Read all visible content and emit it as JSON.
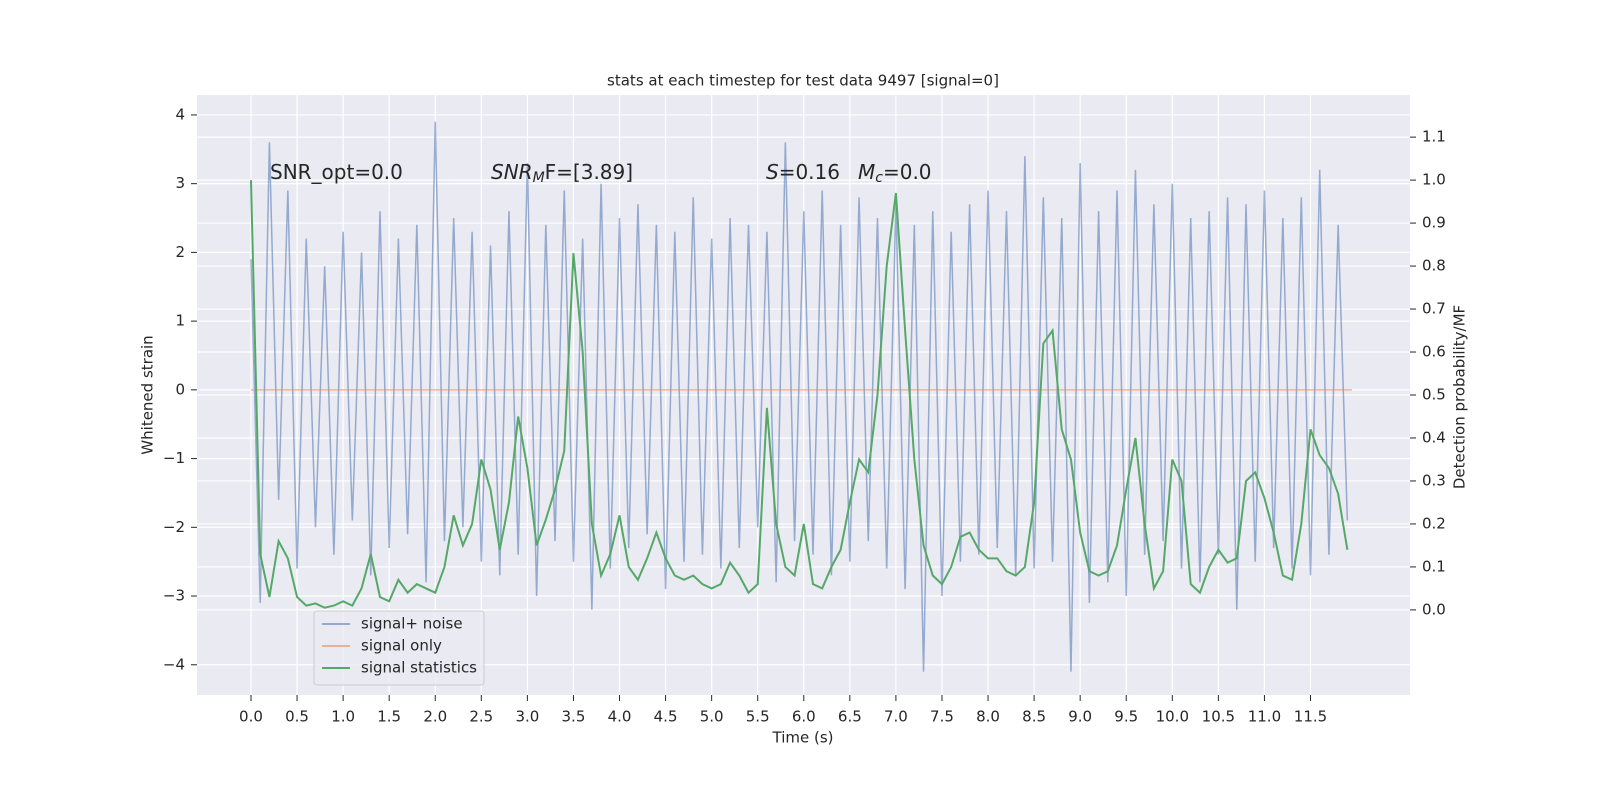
{
  "chart_data": {
    "type": "line",
    "title": "stats at each timestep for test data 9497 [signal=0]",
    "xlabel": "Time (s)",
    "ylabel": "Whitened strain",
    "y2label": "Detection probability/MF",
    "annotations": [
      [
        "SNR_opt=0.0"
      ],
      [
        "SNR",
        "M",
        "F=[3.89]"
      ],
      [
        "S",
        "=0.16"
      ],
      [
        "M",
        "c",
        "=0.0"
      ]
    ],
    "x": [
      0,
      0.1,
      0.2,
      0.3,
      0.4,
      0.5,
      0.6,
      0.7,
      0.8,
      0.9,
      1,
      1.1,
      1.2,
      1.3,
      1.4,
      1.5,
      1.6,
      1.7,
      1.8,
      1.9,
      2,
      2.1,
      2.2,
      2.3,
      2.4,
      2.5,
      2.6,
      2.7,
      2.8,
      2.9,
      3,
      3.1,
      3.2,
      3.3,
      3.4,
      3.5,
      3.6,
      3.7,
      3.8,
      3.9,
      4,
      4.1,
      4.2,
      4.3,
      4.4,
      4.5,
      4.6,
      4.7,
      4.8,
      4.9,
      5,
      5.1,
      5.2,
      5.3,
      5.4,
      5.5,
      5.6,
      5.7,
      5.8,
      5.9,
      6,
      6.1,
      6.2,
      6.3,
      6.4,
      6.5,
      6.6,
      6.7,
      6.8,
      6.9,
      7,
      7.1,
      7.2,
      7.3,
      7.4,
      7.5,
      7.6,
      7.7,
      7.8,
      7.9,
      8,
      8.1,
      8.2,
      8.3,
      8.4,
      8.5,
      8.6,
      8.7,
      8.8,
      8.9,
      9,
      9.1,
      9.2,
      9.3,
      9.4,
      9.5,
      9.6,
      9.7,
      9.8,
      9.9,
      10,
      10.1,
      10.2,
      10.3,
      10.4,
      10.5,
      10.6,
      10.7,
      10.8,
      10.9,
      11,
      11.1,
      11.2,
      11.3,
      11.4,
      11.5,
      11.6,
      11.7,
      11.8,
      11.9
    ],
    "series": [
      {
        "name": "signal+ noise",
        "color": "#4c72b0",
        "axis": "y",
        "values": [
          1.9,
          -3.1,
          3.6,
          -1.6,
          2.9,
          -2.6,
          2.2,
          -2.0,
          1.8,
          -2.4,
          2.3,
          -1.9,
          2.0,
          -2.7,
          2.6,
          -2.3,
          2.2,
          -2.1,
          2.4,
          -2.8,
          3.9,
          -2.2,
          2.5,
          -2.0,
          2.3,
          -2.5,
          2.1,
          -2.7,
          2.6,
          -2.4,
          3.3,
          -3.0,
          2.4,
          -2.2,
          2.9,
          -2.5,
          2.2,
          -3.2,
          3.0,
          -2.6,
          2.5,
          -2.3,
          2.7,
          -2.1,
          2.4,
          -2.9,
          2.3,
          -2.5,
          2.8,
          -2.4,
          2.2,
          -2.6,
          2.5,
          -2.3,
          2.4,
          -2.0,
          2.3,
          -2.8,
          3.6,
          -2.2,
          2.6,
          -2.4,
          2.9,
          -2.7,
          2.4,
          -2.5,
          2.8,
          -2.2,
          2.5,
          -2.6,
          2.7,
          -2.9,
          2.4,
          -4.1,
          2.6,
          -3.0,
          2.3,
          -2.5,
          2.7,
          -2.4,
          2.9,
          -2.3,
          2.6,
          -2.7,
          3.4,
          -2.6,
          2.8,
          -2.5,
          2.5,
          -4.1,
          3.3,
          -3.1,
          2.6,
          -2.8,
          2.9,
          -3.0,
          3.2,
          -2.4,
          2.7,
          -2.2,
          3.0,
          -2.6,
          2.5,
          -2.8,
          2.6,
          -2.4,
          2.8,
          -3.2,
          2.7,
          -2.5,
          2.9,
          -2.3,
          2.5,
          -2.6,
          2.8,
          -2.7,
          3.2,
          -2.4,
          2.4,
          -1.9
        ]
      },
      {
        "name": "signal only",
        "color": "#dd8452",
        "axis": "y",
        "x": [
          0,
          11.95
        ],
        "values": [
          0,
          0
        ]
      },
      {
        "name": "signal statistics",
        "color": "#55a868",
        "axis": "y2",
        "values": [
          1.0,
          0.13,
          0.03,
          0.16,
          0.12,
          0.03,
          0.01,
          0.015,
          0.005,
          0.01,
          0.02,
          0.01,
          0.05,
          0.13,
          0.03,
          0.02,
          0.07,
          0.04,
          0.06,
          0.05,
          0.04,
          0.1,
          0.22,
          0.15,
          0.2,
          0.35,
          0.28,
          0.14,
          0.25,
          0.45,
          0.33,
          0.15,
          0.21,
          0.28,
          0.37,
          0.83,
          0.6,
          0.2,
          0.08,
          0.13,
          0.22,
          0.1,
          0.07,
          0.12,
          0.18,
          0.12,
          0.08,
          0.07,
          0.08,
          0.06,
          0.05,
          0.06,
          0.11,
          0.08,
          0.04,
          0.06,
          0.47,
          0.2,
          0.1,
          0.08,
          0.2,
          0.06,
          0.05,
          0.1,
          0.14,
          0.25,
          0.35,
          0.32,
          0.5,
          0.8,
          0.97,
          0.65,
          0.35,
          0.15,
          0.08,
          0.06,
          0.1,
          0.17,
          0.18,
          0.14,
          0.12,
          0.12,
          0.09,
          0.08,
          0.1,
          0.25,
          0.62,
          0.65,
          0.42,
          0.35,
          0.18,
          0.09,
          0.08,
          0.09,
          0.15,
          0.28,
          0.4,
          0.2,
          0.05,
          0.09,
          0.35,
          0.3,
          0.06,
          0.04,
          0.1,
          0.14,
          0.11,
          0.12,
          0.3,
          0.32,
          0.26,
          0.18,
          0.08,
          0.07,
          0.2,
          0.42,
          0.36,
          0.33,
          0.27,
          0.14
        ]
      }
    ],
    "xlim": [
      -0.586,
      12.58
    ],
    "xticks": [
      {
        "value": 0,
        "label": "0.0"
      },
      {
        "value": 0.5,
        "label": "0.5"
      },
      {
        "value": 1,
        "label": "1.0"
      },
      {
        "value": 1.5,
        "label": "1.5"
      },
      {
        "value": 2,
        "label": "2.0"
      },
      {
        "value": 2.5,
        "label": "2.5"
      },
      {
        "value": 3,
        "label": "3.0"
      },
      {
        "value": 3.5,
        "label": "3.5"
      },
      {
        "value": 4,
        "label": "4.0"
      },
      {
        "value": 4.5,
        "label": "4.5"
      },
      {
        "value": 5,
        "label": "5.0"
      },
      {
        "value": 5.5,
        "label": "5.5"
      },
      {
        "value": 6,
        "label": "6.0"
      },
      {
        "value": 6.5,
        "label": "6.5"
      },
      {
        "value": 7,
        "label": "7.0"
      },
      {
        "value": 7.5,
        "label": "7.5"
      },
      {
        "value": 8,
        "label": "8.0"
      },
      {
        "value": 8.5,
        "label": "8.5"
      },
      {
        "value": 9,
        "label": "9.0"
      },
      {
        "value": 9.5,
        "label": "9.5"
      },
      {
        "value": 10,
        "label": "10.0"
      },
      {
        "value": 10.5,
        "label": "10.5"
      },
      {
        "value": 11,
        "label": "11.0"
      },
      {
        "value": 11.5,
        "label": "11.5"
      }
    ],
    "ylim": [
      -4.44,
      4.29
    ],
    "yticks": [
      {
        "value": -4,
        "label": "−4"
      },
      {
        "value": -3,
        "label": "−3"
      },
      {
        "value": -2,
        "label": "−2"
      },
      {
        "value": -1,
        "label": "−1"
      },
      0,
      1,
      2,
      3,
      4
    ],
    "y2lim": [
      -0.198,
      1.198
    ],
    "y2ticks": [
      {
        "value": 0,
        "label": "0.0"
      },
      {
        "value": 0.1,
        "label": "0.1"
      },
      {
        "value": 0.2,
        "label": "0.2"
      },
      {
        "value": 0.3,
        "label": "0.3"
      },
      {
        "value": 0.4,
        "label": "0.4"
      },
      {
        "value": 0.5,
        "label": "0.5"
      },
      {
        "value": 0.6,
        "label": "0.6"
      },
      {
        "value": 0.7,
        "label": "0.7"
      },
      {
        "value": 0.8,
        "label": "0.8"
      },
      {
        "value": 0.9,
        "label": "0.9"
      },
      {
        "value": 1,
        "label": "1.0"
      },
      {
        "value": 1.1,
        "label": "1.1"
      }
    ],
    "grid": true,
    "legend": "lower left"
  }
}
